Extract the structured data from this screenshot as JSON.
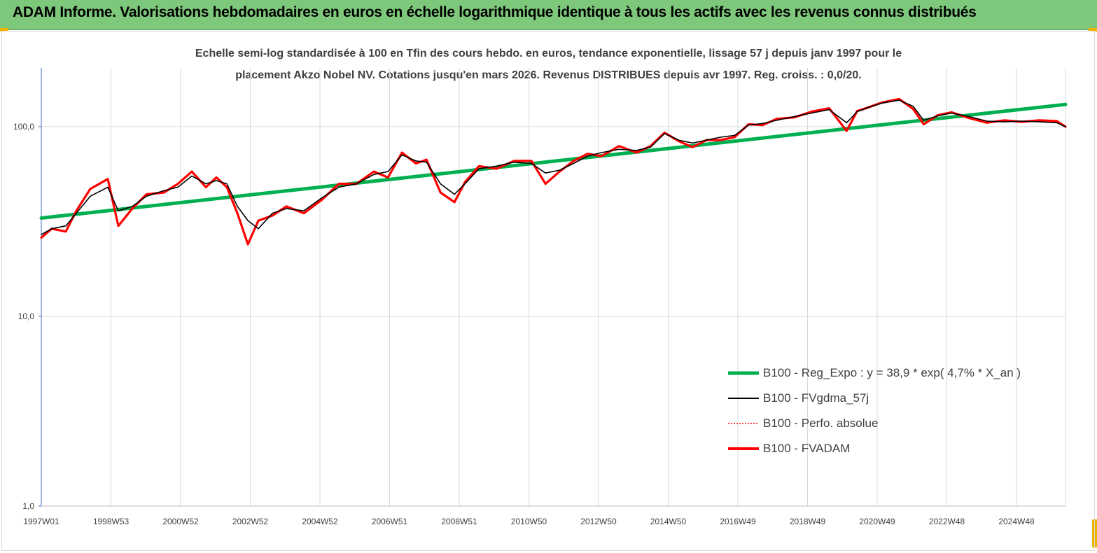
{
  "header": {
    "title": "ADAM Informe. Valorisations hebdomadaires en euros en échelle logarithmique identique à tous les actifs avec les revenus connus distribués",
    "background": "#7dc87a",
    "corner_color": "#f0b400"
  },
  "chart_data": {
    "type": "line",
    "title_line1": "Echelle semi-log standardisée à 100 en Tfin des cours hebdo. en euros, tendance exponentielle, lissage 57 j depuis janv 1997 pour le",
    "title_line2": "placement Akzo Nobel NV. Cotations jusqu'en mars 2026. Revenus DISTRIBUES depuis avr 1997. Reg. croiss. : 0,0/20.",
    "y_scale": "log",
    "ylim": [
      1,
      200
    ],
    "y_ticks": [
      {
        "value": 1,
        "label": "1,0"
      },
      {
        "value": 10,
        "label": "10,0"
      },
      {
        "value": 100,
        "label": "100,0"
      }
    ],
    "x_ticks": [
      "1997W01",
      "1998W53",
      "2000W52",
      "2002W52",
      "2004W52",
      "2006W51",
      "2008W51",
      "2010W50",
      "2012W50",
      "2014W50",
      "2016W49",
      "2018W49",
      "2020W49",
      "2022W48",
      "2024W48"
    ],
    "x_start": 1997.0,
    "x_end": 2026.25,
    "grid": "vertical",
    "legend_position": "bottom-right",
    "series": [
      {
        "name": "B100 - Reg_Expo : y = 38,9 * exp( 4,7% *  X_an )",
        "color": "#00b050",
        "style": "solid-thick",
        "x": [
          1997.0,
          2026.25
        ],
        "y": [
          33,
          131
        ]
      },
      {
        "name": "B100 - FVgdma_57j",
        "color": "#000000",
        "style": "solid",
        "x": [
          1997.0,
          1997.3,
          1997.7,
          1998.0,
          1998.4,
          1998.9,
          1999.2,
          1999.6,
          2000.0,
          2000.5,
          2000.9,
          2001.3,
          2001.7,
          2002.0,
          2002.3,
          2002.6,
          2002.9,
          2003.2,
          2003.6,
          2004.0,
          2004.5,
          2005.0,
          2005.5,
          2006.0,
          2006.5,
          2006.9,
          2007.3,
          2007.7,
          2008.0,
          2008.4,
          2008.8,
          2009.1,
          2009.5,
          2010.0,
          2010.5,
          2011.0,
          2011.4,
          2011.8,
          2012.2,
          2012.6,
          2013.0,
          2013.5,
          2014.0,
          2014.4,
          2014.8,
          2015.2,
          2015.6,
          2016.0,
          2016.4,
          2016.8,
          2017.2,
          2017.6,
          2018.0,
          2018.5,
          2019.0,
          2019.5,
          2020.0,
          2020.3,
          2020.6,
          2021.0,
          2021.5,
          2021.9,
          2022.2,
          2022.6,
          2023.0,
          2023.5,
          2024.0,
          2024.5,
          2025.0,
          2025.5,
          2026.0,
          2026.25
        ],
        "y": [
          27,
          29,
          30,
          35,
          43,
          48,
          36,
          38,
          43,
          46,
          48,
          55,
          50,
          52,
          50,
          38,
          32,
          29,
          35,
          37,
          36,
          42,
          48,
          50,
          56,
          58,
          71,
          66,
          65,
          50,
          44,
          50,
          60,
          62,
          65,
          64,
          57,
          59,
          64,
          70,
          73,
          76,
          75,
          78,
          92,
          85,
          82,
          85,
          88,
          90,
          102,
          104,
          108,
          113,
          118,
          123,
          105,
          120,
          126,
          133,
          138,
          128,
          108,
          114,
          118,
          113,
          107,
          106,
          107,
          106,
          105,
          100
        ]
      },
      {
        "name": "B100 - Perfo. absolue",
        "color": "#ff0000",
        "style": "dotted",
        "x": [],
        "y": []
      },
      {
        "name": "B100 - FVADAM",
        "color": "#ff0000",
        "style": "solid-thick",
        "x": [
          1997.0,
          1997.3,
          1997.7,
          1998.0,
          1998.4,
          1998.9,
          1999.2,
          1999.6,
          2000.0,
          2000.5,
          2000.9,
          2001.3,
          2001.7,
          2002.0,
          2002.3,
          2002.6,
          2002.9,
          2003.2,
          2003.6,
          2004.0,
          2004.5,
          2005.0,
          2005.5,
          2006.0,
          2006.5,
          2006.9,
          2007.3,
          2007.7,
          2008.0,
          2008.4,
          2008.8,
          2009.1,
          2009.5,
          2010.0,
          2010.5,
          2011.0,
          2011.4,
          2011.8,
          2012.2,
          2012.6,
          2013.0,
          2013.5,
          2014.0,
          2014.4,
          2014.8,
          2015.2,
          2015.6,
          2016.0,
          2016.4,
          2016.8,
          2017.2,
          2017.6,
          2018.0,
          2018.5,
          2019.0,
          2019.5,
          2020.0,
          2020.3,
          2020.6,
          2021.0,
          2021.5,
          2021.9,
          2022.2,
          2022.6,
          2023.0,
          2023.5,
          2024.0,
          2024.5,
          2025.0,
          2025.5,
          2026.0,
          2026.25
        ],
        "y": [
          26,
          29,
          28,
          36,
          47,
          53,
          30,
          37,
          44,
          45,
          50,
          58,
          48,
          54,
          48,
          35,
          24,
          32,
          34,
          38,
          35,
          41,
          50,
          50,
          58,
          54,
          73,
          64,
          67,
          45,
          40,
          51,
          62,
          60,
          66,
          66,
          50,
          58,
          66,
          72,
          70,
          79,
          73,
          79,
          93,
          84,
          78,
          85,
          85,
          88,
          103,
          102,
          110,
          112,
          120,
          125,
          95,
          121,
          126,
          134,
          140,
          124,
          103,
          115,
          119,
          111,
          105,
          108,
          106,
          108,
          107,
          100
        ]
      }
    ]
  }
}
